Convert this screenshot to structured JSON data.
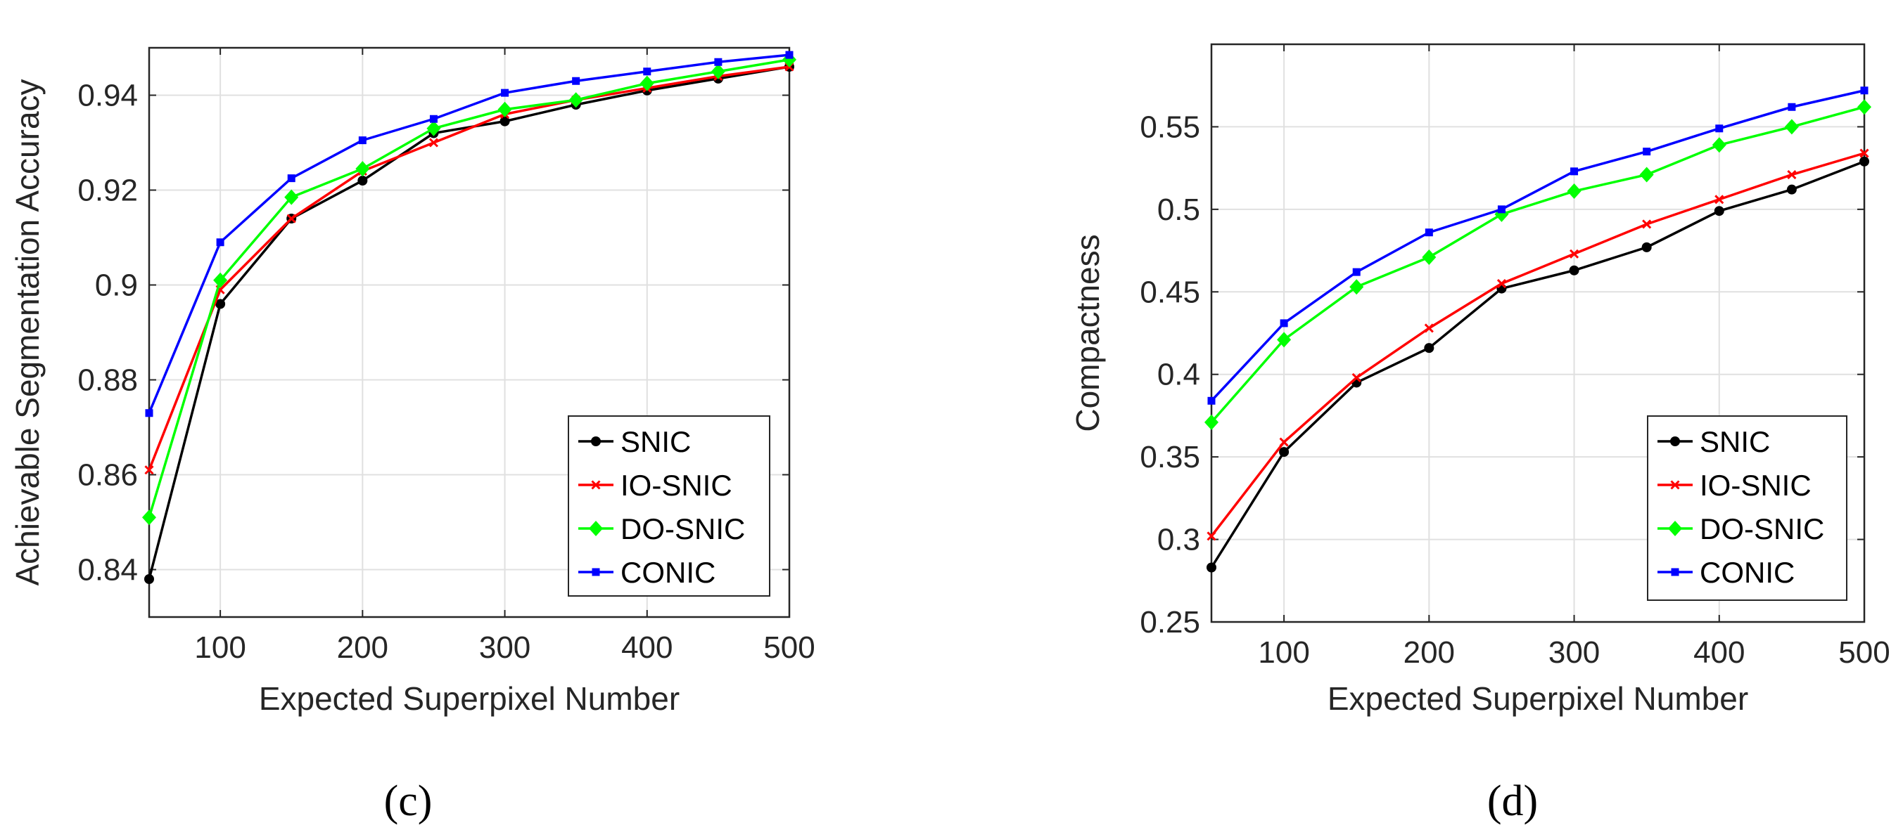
{
  "chart_data": [
    {
      "type": "line",
      "panel_label": "(c)",
      "title": "",
      "xlabel": "Expected Superpixel Number",
      "ylabel": "Achievable Segmentation Accuracy",
      "x": [
        50,
        100,
        150,
        200,
        250,
        300,
        350,
        400,
        450,
        500
      ],
      "xlim": [
        50,
        500
      ],
      "ylim": [
        0.83,
        0.95
      ],
      "xticks": [
        100,
        200,
        300,
        400,
        500
      ],
      "xtick_labels": [
        "100",
        "200",
        "300",
        "400",
        "500"
      ],
      "yticks": [
        0.84,
        0.86,
        0.88,
        0.9,
        0.92,
        0.94
      ],
      "ytick_labels": [
        "0.84",
        "0.86",
        "0.88",
        "0.9",
        "0.92",
        "0.94"
      ],
      "grid": true,
      "legend_position": "bottom-right",
      "series": [
        {
          "name": "SNIC",
          "color": "#000000",
          "marker": "circle",
          "values": [
            0.838,
            0.896,
            0.914,
            0.922,
            0.932,
            0.9345,
            0.938,
            0.941,
            0.9435,
            0.946
          ]
        },
        {
          "name": "IO-SNIC",
          "color": "#ff0000",
          "marker": "x",
          "values": [
            0.861,
            0.899,
            0.914,
            0.924,
            0.93,
            0.936,
            0.939,
            0.9415,
            0.944,
            0.946
          ]
        },
        {
          "name": "DO-SNIC",
          "color": "#00ff00",
          "marker": "diamond",
          "values": [
            0.851,
            0.901,
            0.9185,
            0.9245,
            0.933,
            0.937,
            0.939,
            0.9425,
            0.945,
            0.9475
          ]
        },
        {
          "name": "CONIC",
          "color": "#0000ff",
          "marker": "square",
          "values": [
            0.873,
            0.909,
            0.9225,
            0.9305,
            0.935,
            0.9405,
            0.943,
            0.945,
            0.947,
            0.9485
          ]
        }
      ]
    },
    {
      "type": "line",
      "panel_label": "(d)",
      "title": "",
      "xlabel": "Expected Superpixel Number",
      "ylabel": "Compactness",
      "x": [
        50,
        100,
        150,
        200,
        250,
        300,
        350,
        400,
        450,
        500
      ],
      "xlim": [
        50,
        500
      ],
      "ylim": [
        0.25,
        0.6
      ],
      "xticks": [
        100,
        200,
        300,
        400,
        500
      ],
      "xtick_labels": [
        "100",
        "200",
        "300",
        "400",
        "500"
      ],
      "yticks": [
        0.25,
        0.3,
        0.35,
        0.4,
        0.45,
        0.5,
        0.55
      ],
      "ytick_labels": [
        "0.25",
        "0.3",
        "0.35",
        "0.4",
        "0.45",
        "0.5",
        "0.55"
      ],
      "grid": true,
      "legend_position": "bottom-right",
      "series": [
        {
          "name": "SNIC",
          "color": "#000000",
          "marker": "circle",
          "values": [
            0.283,
            0.353,
            0.395,
            0.416,
            0.452,
            0.463,
            0.477,
            0.499,
            0.512,
            0.529
          ]
        },
        {
          "name": "IO-SNIC",
          "color": "#ff0000",
          "marker": "x",
          "values": [
            0.302,
            0.359,
            0.398,
            0.428,
            0.455,
            0.473,
            0.491,
            0.506,
            0.521,
            0.534
          ]
        },
        {
          "name": "DO-SNIC",
          "color": "#00ff00",
          "marker": "diamond",
          "values": [
            0.371,
            0.421,
            0.453,
            0.471,
            0.497,
            0.511,
            0.521,
            0.539,
            0.55,
            0.562
          ]
        },
        {
          "name": "CONIC",
          "color": "#0000ff",
          "marker": "square",
          "values": [
            0.384,
            0.431,
            0.462,
            0.486,
            0.5,
            0.523,
            0.535,
            0.549,
            0.562,
            0.572
          ]
        }
      ]
    }
  ]
}
